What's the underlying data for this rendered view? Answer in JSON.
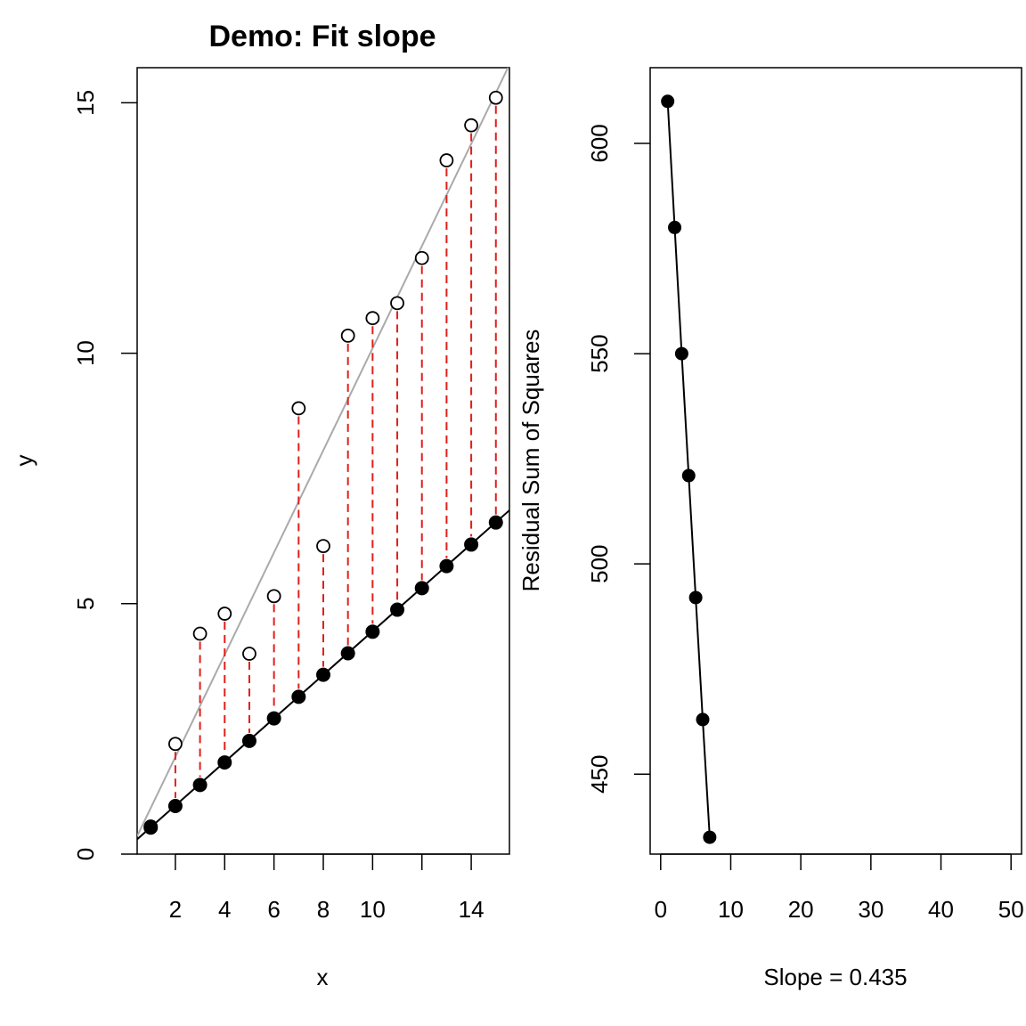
{
  "chart_data": [
    {
      "type": "scatter",
      "title": "Demo: Fit slope",
      "xlabel": "x",
      "ylabel": "y",
      "xlim": [
        0.45,
        15.55
      ],
      "ylim": [
        0,
        15.7
      ],
      "xticks": [
        2,
        4,
        6,
        8,
        10,
        12,
        14
      ],
      "xtick_labels": [
        "2",
        "4",
        "6",
        "8",
        "10",
        "",
        "14"
      ],
      "yticks": [
        0,
        5,
        10,
        15
      ],
      "ytick_labels": [
        "0",
        "5",
        "10",
        "15"
      ],
      "series": [
        {
          "style": "open-circles",
          "x": [
            1,
            2,
            3,
            4,
            5,
            6,
            7,
            8,
            9,
            10,
            11,
            12,
            13,
            14,
            15
          ],
          "y": [
            0.55,
            2.2,
            4.4,
            4.8,
            4.0,
            5.15,
            8.9,
            6.15,
            10.35,
            10.7,
            11.0,
            11.9,
            13.85,
            14.55,
            15.1
          ]
        },
        {
          "style": "filled-circles",
          "x": [
            1,
            2,
            3,
            4,
            5,
            6,
            7,
            8,
            9,
            10,
            11,
            12,
            13,
            14,
            15
          ],
          "y": [
            0.53,
            0.96,
            1.38,
            1.83,
            2.26,
            2.71,
            3.14,
            3.58,
            4.01,
            4.44,
            4.88,
            5.31,
            5.75,
            6.18,
            6.62
          ]
        }
      ],
      "lines": [
        {
          "role": "fitted",
          "color": "#000000",
          "intercept": 0.1,
          "slope": 0.435
        },
        {
          "role": "reference",
          "color": "#aaaaaa",
          "intercept": -0.1,
          "slope": 1.02
        }
      ],
      "residual_color": "#e0201b",
      "grid": false,
      "legend": "none"
    },
    {
      "type": "line",
      "title": "",
      "xlabel": "Slope = 0.435",
      "ylabel": "Residual Sum of Squares",
      "xlim": [
        -1.5,
        51.5
      ],
      "ylim": [
        431,
        618
      ],
      "xticks": [
        0,
        10,
        20,
        30,
        40,
        50
      ],
      "xtick_labels": [
        "0",
        "10",
        "20",
        "30",
        "40",
        "50"
      ],
      "yticks": [
        450,
        500,
        550,
        600
      ],
      "ytick_labels": [
        "450",
        "500",
        "550",
        "600"
      ],
      "x": [
        1,
        2,
        3,
        4,
        5,
        6,
        7
      ],
      "y": [
        610,
        580,
        550,
        521,
        492,
        463,
        435
      ],
      "markers": "filled-circles",
      "grid": false,
      "legend": "none"
    }
  ]
}
